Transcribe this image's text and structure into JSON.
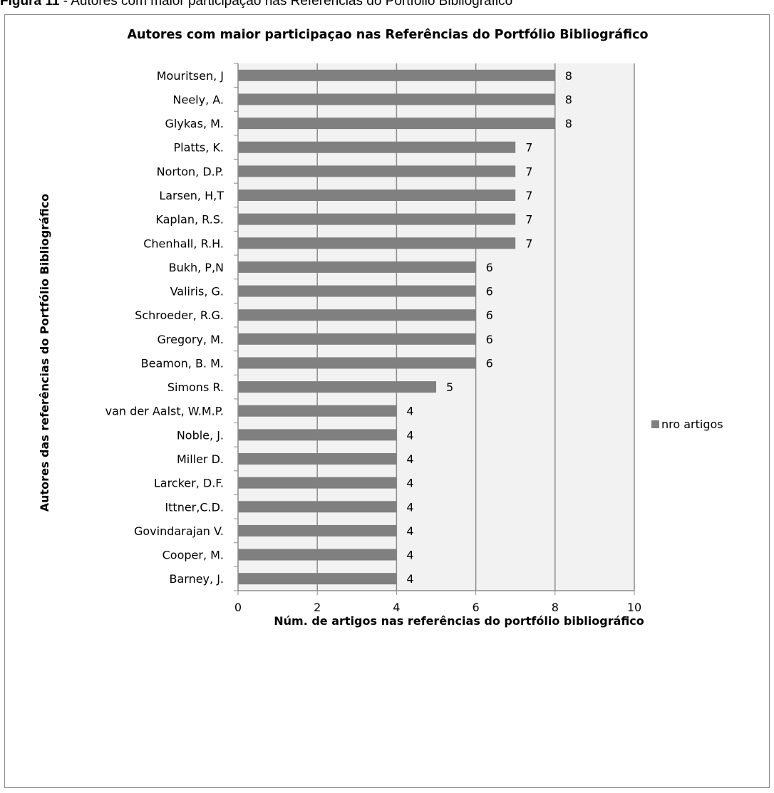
{
  "figure_caption": {
    "label": "Figura 11",
    "text": " - Autores com maior participação nas Referências do Portfólio Bibliográfico"
  },
  "chart_data": {
    "type": "bar",
    "orientation": "horizontal",
    "title": "Autores com maior participaçao nas Referências do Portfólio Bibliográfico",
    "xlabel": "Núm. de artigos nas referências do portfólio bibliográfico",
    "ylabel": "Autores das referências do Portfólio Bibliográfico",
    "xlim": [
      0,
      10
    ],
    "xticks": [
      "0",
      "2",
      "4",
      "6",
      "8",
      "10"
    ],
    "grid": "vertical",
    "legend_position": "right",
    "bar_color": "#808080",
    "categories": [
      "Mouritsen, J",
      "Neely, A.",
      "Glykas, M.",
      "Platts, K.",
      "Norton, D.P.",
      "Larsen, H,T",
      "Kaplan, R.S.",
      "Chenhall, R.H.",
      "Bukh, P,N",
      "Valiris, G.",
      "Schroeder, R.G.",
      "Gregory, M.",
      "Beamon, B. M.",
      "Simons R.",
      "van der Aalst, W.M.P.",
      "Noble, J.",
      "Miller D.",
      "Larcker, D.F.",
      "Ittner,C.D.",
      "Govindarajan V.",
      "Cooper, M.",
      "Barney, J."
    ],
    "series": [
      {
        "name": "nro artigos",
        "values": [
          8,
          8,
          8,
          7,
          7,
          7,
          7,
          7,
          6,
          6,
          6,
          6,
          6,
          5,
          4,
          4,
          4,
          4,
          4,
          4,
          4,
          4
        ]
      }
    ]
  }
}
